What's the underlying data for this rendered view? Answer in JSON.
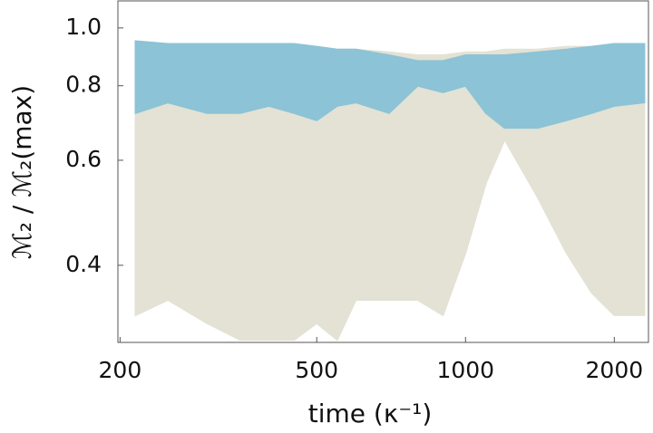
{
  "chart_data": {
    "type": "band",
    "x_label": "time (κ⁻¹)",
    "y_label": "ℳ₂ / ℳ₂(max)",
    "x": [
      215,
      250,
      300,
      350,
      400,
      450,
      500,
      550,
      600,
      700,
      800,
      900,
      1000,
      1100,
      1200,
      1400,
      1600,
      1800,
      2000,
      2300
    ],
    "series": [
      {
        "color": "#e3e2d4",
        "lower": [
          0.33,
          0.35,
          0.32,
          0.3,
          0.3,
          0.3,
          0.32,
          0.3,
          0.35,
          0.35,
          0.35,
          0.33,
          0.42,
          0.55,
          0.65,
          0.52,
          0.42,
          0.36,
          0.33,
          0.33
        ],
        "upper": [
          0.93,
          0.93,
          0.93,
          0.93,
          0.93,
          0.93,
          0.93,
          0.92,
          0.92,
          0.91,
          0.9,
          0.9,
          0.91,
          0.91,
          0.92,
          0.92,
          0.93,
          0.93,
          0.94,
          0.94
        ]
      },
      {
        "color": "#8cc3d6",
        "lower": [
          0.72,
          0.75,
          0.72,
          0.72,
          0.74,
          0.72,
          0.7,
          0.74,
          0.75,
          0.72,
          0.8,
          0.78,
          0.8,
          0.72,
          0.68,
          0.68,
          0.7,
          0.72,
          0.74,
          0.75
        ],
        "upper": [
          0.95,
          0.94,
          0.94,
          0.94,
          0.94,
          0.94,
          0.93,
          0.92,
          0.92,
          0.9,
          0.88,
          0.88,
          0.9,
          0.9,
          0.9,
          0.91,
          0.92,
          0.93,
          0.94,
          0.94
        ]
      }
    ],
    "xscale": "log",
    "yscale": "log",
    "xlim": [
      198,
      2345
    ],
    "ylim": [
      0.297,
      1.11
    ],
    "xticks": [
      200,
      500,
      1000,
      2000
    ],
    "yticks": [
      {
        "value": 1,
        "label": "1.0"
      },
      0.8,
      0.6,
      0.4
    ]
  }
}
